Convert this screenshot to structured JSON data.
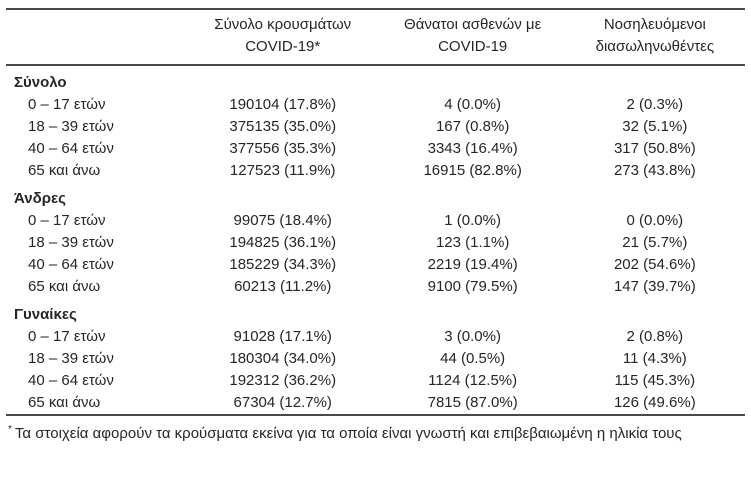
{
  "page": {
    "background": "#ffffff",
    "rule_color": "#4a4a4a",
    "text_color": "#262626"
  },
  "table": {
    "headers": [
      {
        "line1": "Σύνολο κρουσμάτων",
        "line2": "COVID-19*"
      },
      {
        "line1": "Θάνατοι ασθενών με",
        "line2": "COVID-19"
      },
      {
        "line1": "Νοσηλευόμενοι",
        "line2": "διασωληνωθέντες"
      }
    ],
    "sections": [
      {
        "label": "Σύνολο",
        "rows": [
          {
            "label": "0 – 17 ετών",
            "cases": "190104 (17.8%)",
            "deaths": "4 (0.0%)",
            "intubated": "2 (0.3%)"
          },
          {
            "label": "18 – 39 ετών",
            "cases": "375135 (35.0%)",
            "deaths": "167 (0.8%)",
            "intubated": "32 (5.1%)"
          },
          {
            "label": "40 – 64 ετών",
            "cases": "377556 (35.3%)",
            "deaths": "3343 (16.4%)",
            "intubated": "317 (50.8%)"
          },
          {
            "label": "65 και άνω",
            "cases": "127523 (11.9%)",
            "deaths": "16915 (82.8%)",
            "intubated": "273 (43.8%)"
          }
        ]
      },
      {
        "label": "Άνδρες",
        "rows": [
          {
            "label": "0 – 17 ετών",
            "cases": "99075 (18.4%)",
            "deaths": "1 (0.0%)",
            "intubated": "0 (0.0%)"
          },
          {
            "label": "18 – 39 ετών",
            "cases": "194825 (36.1%)",
            "deaths": "123 (1.1%)",
            "intubated": "21 (5.7%)"
          },
          {
            "label": "40 – 64 ετών",
            "cases": "185229 (34.3%)",
            "deaths": "2219 (19.4%)",
            "intubated": "202 (54.6%)"
          },
          {
            "label": "65 και άνω",
            "cases": "60213 (11.2%)",
            "deaths": "9100 (79.5%)",
            "intubated": "147 (39.7%)"
          }
        ]
      },
      {
        "label": "Γυναίκες",
        "rows": [
          {
            "label": "0 – 17 ετών",
            "cases": "91028 (17.1%)",
            "deaths": "3 (0.0%)",
            "intubated": "2 (0.8%)"
          },
          {
            "label": "18 – 39 ετών",
            "cases": "180304 (34.0%)",
            "deaths": "44 (0.5%)",
            "intubated": "11 (4.3%)"
          },
          {
            "label": "40 – 64 ετών",
            "cases": "192312 (36.2%)",
            "deaths": "1124 (12.5%)",
            "intubated": "115 (45.3%)"
          },
          {
            "label": "65 και άνω",
            "cases": "67304 (12.7%)",
            "deaths": "7815 (87.0%)",
            "intubated": "126 (49.6%)"
          }
        ]
      }
    ]
  },
  "footnote": {
    "marker": "*",
    "text": "Τα στοιχεία αφορούν τα κρούσματα εκείνα για τα οποία είναι γνωστή και επιβεβαιωμένη η ηλικία τους"
  }
}
